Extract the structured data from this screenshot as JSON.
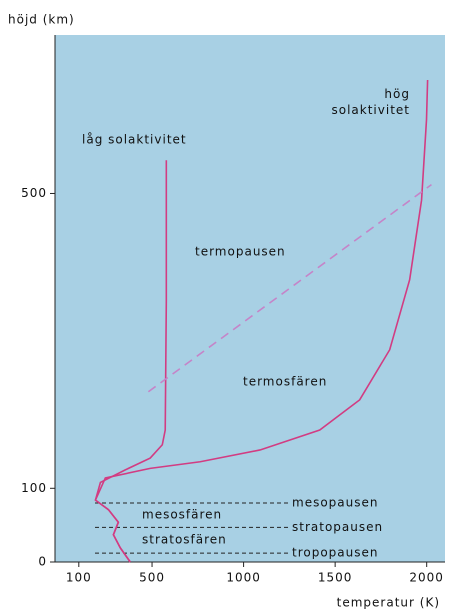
{
  "chart_data": {
    "type": "line",
    "y_label": "höjd (km)",
    "x_label": "temperatur (K)",
    "xlim": [
      -30,
      2100
    ],
    "xticks": [
      100,
      500,
      1000,
      1500,
      2000
    ],
    "ylim": [
      0,
      715
    ],
    "yticks": [
      0,
      100,
      500
    ],
    "background": "#a8d0e4",
    "series": [
      {
        "name": "låg solaktivitet",
        "color": "#d23c82",
        "x": [
          381,
          327,
          289,
          316,
          262,
          191,
          218,
          354,
          490,
          556,
          572,
          578,
          578
        ],
        "values": [
          0,
          19,
          37,
          54,
          71,
          84,
          108,
          125,
          141,
          159,
          179,
          355,
          545
        ]
      },
      {
        "name": "hög solaktivitet",
        "color": "#d23c82",
        "x": [
          381,
          327,
          289,
          316,
          262,
          191,
          245,
          490,
          763,
          1090,
          1416,
          1634,
          1798,
          1907,
          1972,
          1999,
          2005
        ],
        "values": [
          0,
          19,
          37,
          54,
          71,
          84,
          114,
          127,
          136,
          152,
          179,
          220,
          288,
          383,
          491,
          600,
          654
        ]
      }
    ],
    "boundary": {
      "label": "termopausen",
      "color": "#c584c8",
      "x": [
        480,
        2026
      ],
      "values": [
        231,
        512
      ]
    },
    "layers": [
      {
        "label": "mesopausen",
        "value": 80
      },
      {
        "label": "stratopausen",
        "value": 47
      },
      {
        "label": "tropopausen",
        "value": 12
      }
    ],
    "annotations": [
      "mesosfären",
      "stratosfären",
      "termosfären"
    ]
  }
}
